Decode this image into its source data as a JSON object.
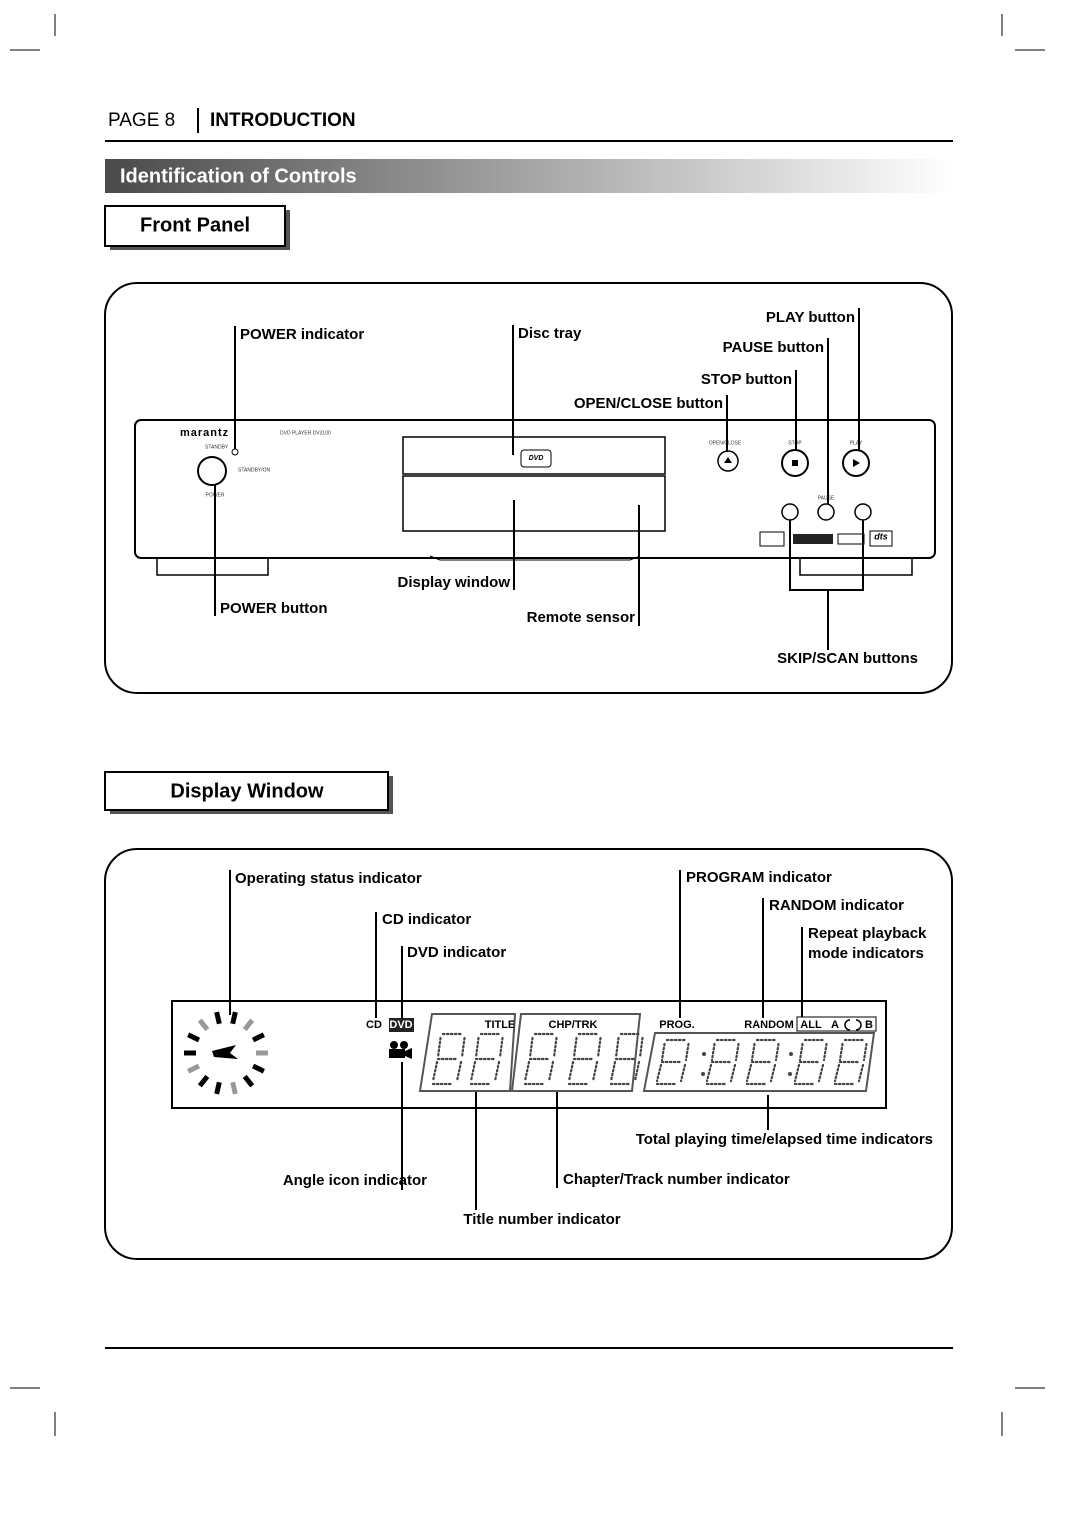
{
  "header": {
    "page": "PAGE 8",
    "section": "INTRODUCTION"
  },
  "title": "Identification of Controls",
  "front_panel": {
    "heading": "Front Panel",
    "device": {
      "brand": "marantz",
      "model": "DVD PLAYER DV3100",
      "standby": "STANDBY",
      "standby_on": "STANDBY/ON",
      "power": "POWER",
      "open_close": "OPEN/CLOSE",
      "stop": "STOP",
      "play": "PLAY",
      "pause": "PAUSE",
      "disc_logo": "DVD",
      "dts": "dts"
    },
    "labels": [
      "POWER indicator",
      "Disc tray",
      "PLAY button",
      "PAUSE button",
      "STOP button",
      "OPEN/CLOSE button",
      "Display window",
      "POWER button",
      "Remote sensor",
      "SKIP/SCAN buttons"
    ]
  },
  "display_window": {
    "heading": "Display Window",
    "display": {
      "cd": "CD",
      "dvd": "DVD",
      "title": "TITLE",
      "chp_trk": "CHP/TRK",
      "prog": "PROG.",
      "random": "RANDOM",
      "all": "ALL",
      "a": "A",
      "b": "B"
    },
    "labels": [
      "Operating status indicator",
      "CD indicator",
      "DVD indicator",
      "PROGRAM indicator",
      "RANDOM indicator",
      "Repeat playback",
      "mode indicators",
      "Total playing time/elapsed time indicators",
      "Angle icon indicator",
      "Chapter/Track number indicator",
      "Title number indicator"
    ]
  }
}
